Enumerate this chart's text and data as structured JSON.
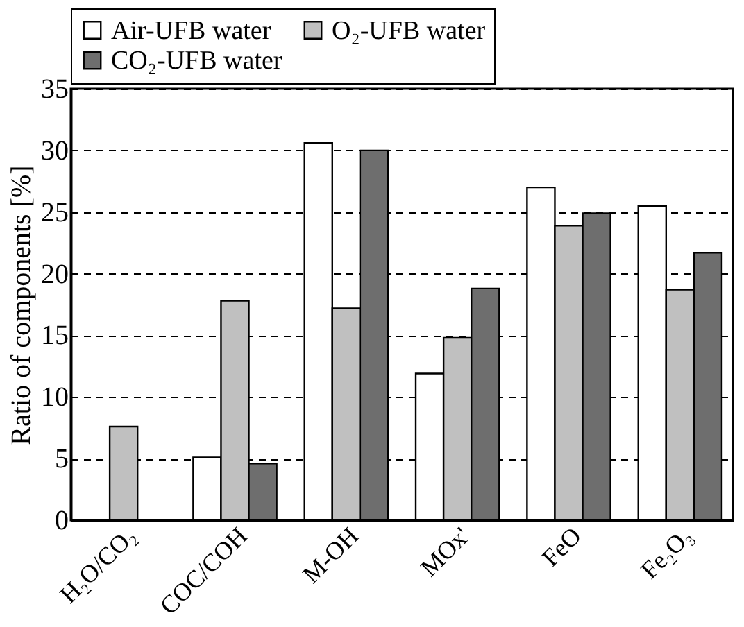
{
  "chart_data": {
    "type": "bar",
    "ylabel": "Ratio of components [%]",
    "categories": [
      "H₂O/CO₂",
      "COC/COH",
      "M-OH",
      "MOx'",
      "FeO",
      "Fe₂O₃"
    ],
    "series": [
      {
        "name": "Air-UFB water",
        "color": "#ffffff",
        "values": [
          null,
          5.1,
          30.6,
          11.9,
          27.0,
          25.5
        ]
      },
      {
        "name": "O₂-UFB water",
        "color": "#c0c0c0",
        "values": [
          7.6,
          17.8,
          17.2,
          14.8,
          23.9,
          18.7
        ]
      },
      {
        "name": "CO₂-UFB water",
        "color": "#6e6e6e",
        "values": [
          null,
          4.6,
          30.0,
          18.8,
          24.9,
          21.7
        ]
      }
    ],
    "ylim": [
      0,
      35
    ],
    "yticks": [
      0,
      5,
      10,
      15,
      20,
      25,
      30,
      35
    ],
    "grid": "y",
    "legend": "top"
  }
}
